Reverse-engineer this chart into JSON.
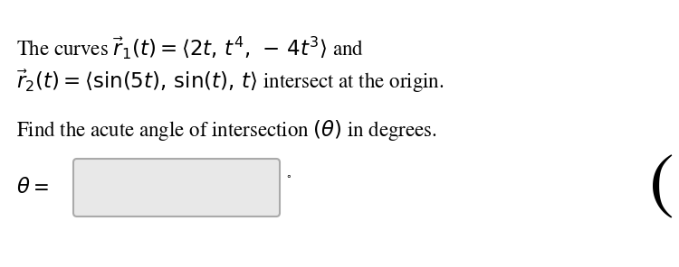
{
  "background_color": "#ffffff",
  "line1": "The curves $\\vec{r}_1(t) = \\langle 2t,\\, t^4,\\, -\\,4t^3 \\rangle$ and",
  "line2": "$\\vec{r}_2(t) = \\langle \\sin(5t),\\, \\sin(t),\\, t \\rangle$ intersect at the origin.",
  "line3": "Find the acute angle of intersection $(\\theta)$ in degrees.",
  "label_theta": "$\\theta$",
  "label_eq": " =",
  "degree_symbol": "$^{\\circ}$",
  "text_color": "#000000",
  "box_color": "#e8e8e8",
  "box_border_color": "#aaaaaa",
  "font_size_main": 16.5,
  "font_size_label": 16.5,
  "font_size_degree": 11,
  "font_size_bracket": 60
}
